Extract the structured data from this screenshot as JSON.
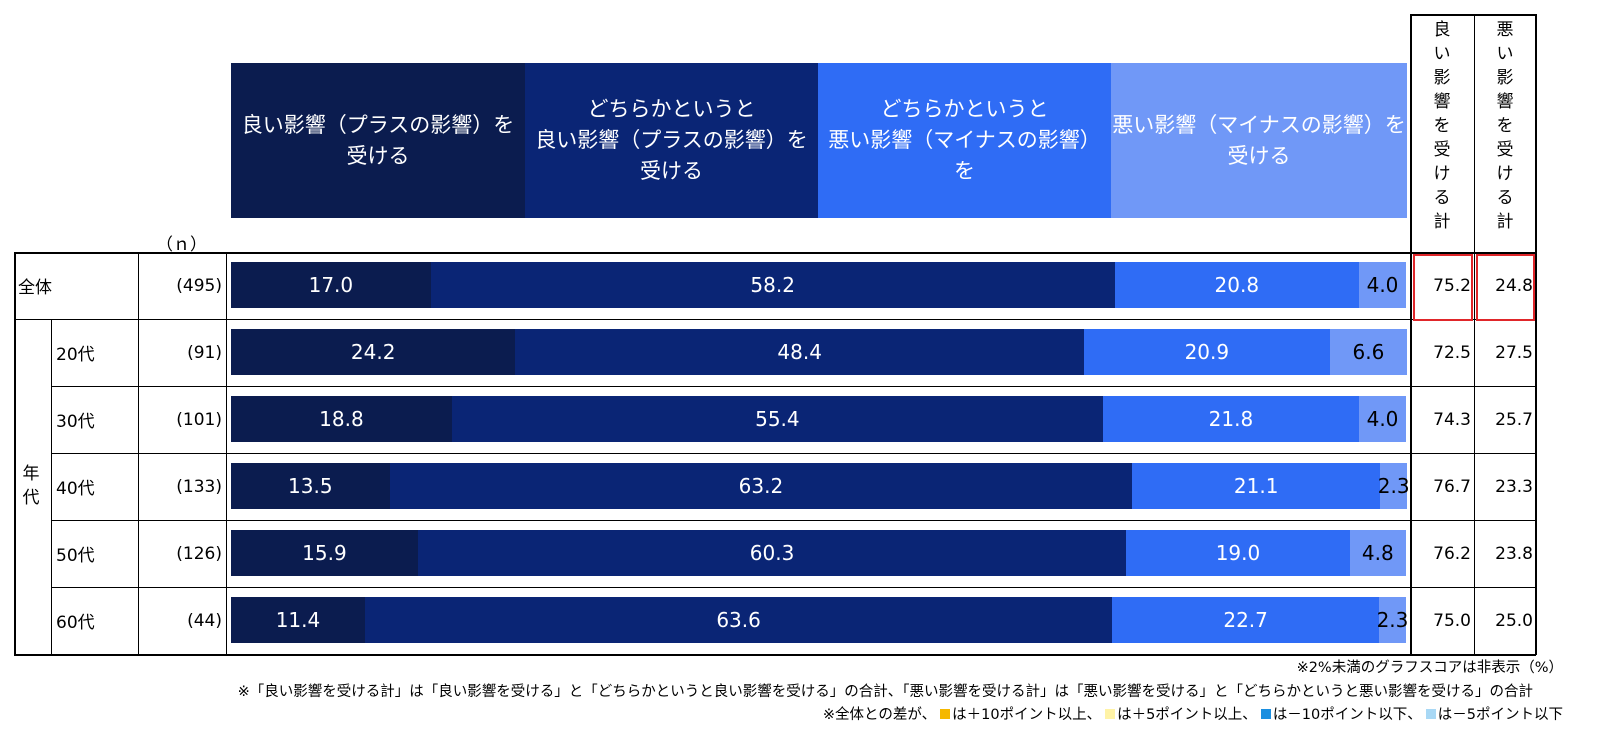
{
  "colors": {
    "good": "#0b1c4f",
    "somewhat_good": "#0a2575",
    "somewhat_bad": "#2f6cf5",
    "bad": "#7098f7",
    "highlight_border": "#e0262a",
    "plus10": "#f5b800",
    "plus5": "#fff3a6",
    "minus10": "#1b8fe0",
    "minus5": "#a8d8f5"
  },
  "header": {
    "n_label": "（ｎ）",
    "total_good_label": "良\nい\n影\n響\nを\n受\nけ\nる\n計",
    "total_bad_label": "悪\nい\n影\n響\nを\n受\nけ\nる\n計"
  },
  "group_label": "年\n代",
  "notes": {
    "line1": "※2%未満のグラフスコアは非表示（%）",
    "line2": "※「良い影響を受ける計」は「良い影響を受ける」と「どちらかというと良い影響を受ける」の合計、「悪い影響を受ける計」は「悪い影響を受ける」と「どちらかというと悪い影響を受ける」の合計",
    "line3_prefix": "※全体との差が、",
    "line3_a": "は＋10ポイント以上、",
    "line3_b": "は＋5ポイント以上、",
    "line3_c": "は－10ポイント以下、",
    "line3_d": "は－5ポイント以下"
  },
  "chart_data": {
    "type": "bar",
    "stacked": true,
    "orientation": "horizontal",
    "unit": "%",
    "series": [
      {
        "name": "良い影響（プラスの影響）を\n受ける",
        "values": [
          17.0,
          24.2,
          18.8,
          13.5,
          15.9,
          11.4
        ]
      },
      {
        "name": "どちらかというと\n良い影響（プラスの影響）を\n受ける",
        "values": [
          58.2,
          48.4,
          55.4,
          63.2,
          60.3,
          63.6
        ]
      },
      {
        "name": "どちらかというと\n悪い影響（マイナスの影響）\nを",
        "values": [
          20.8,
          20.9,
          21.8,
          21.1,
          19.0,
          22.7
        ]
      },
      {
        "name": "悪い影響（マイナスの影響）を\n受ける",
        "values": [
          4.0,
          6.6,
          4.0,
          2.3,
          4.8,
          2.3
        ]
      }
    ],
    "categories": [
      "全体",
      "20代",
      "30代",
      "40代",
      "50代",
      "60代"
    ],
    "n": [
      "(495)",
      "(91)",
      "(101)",
      "(133)",
      "(126)",
      "(44)"
    ],
    "total_good": [
      "75.2",
      "72.5",
      "74.3",
      "76.7",
      "76.2",
      "75.0"
    ],
    "total_bad": [
      "24.8",
      "27.5",
      "25.7",
      "23.3",
      "23.8",
      "25.0"
    ],
    "xlim": [
      0,
      100
    ]
  }
}
